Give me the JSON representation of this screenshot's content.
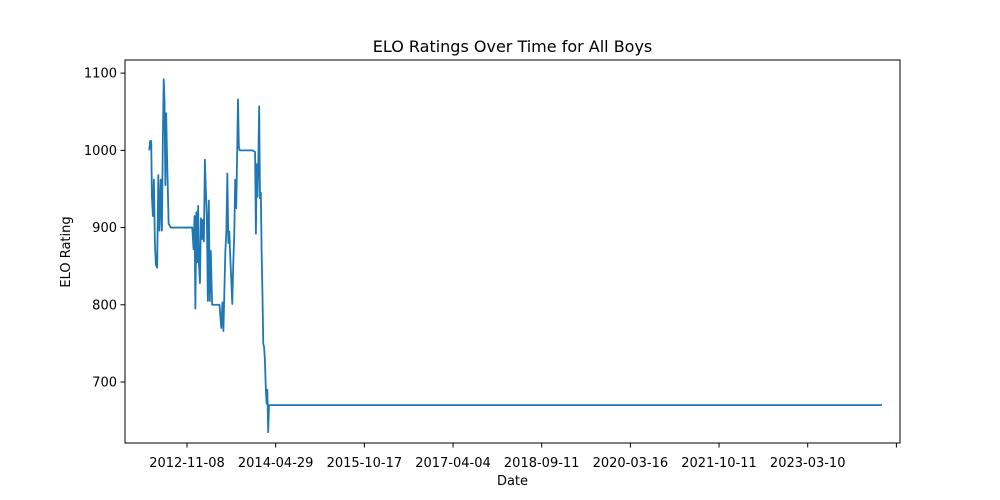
{
  "chart_data": {
    "type": "line",
    "title": "ELO Ratings Over Time for All Boys",
    "xlabel": "Date",
    "ylabel": "ELO Rating",
    "x_tick_labels": [
      "2012-11-08",
      "2014-04-29",
      "2015-10-17",
      "2017-04-04",
      "2018-09-11",
      "2020-03-16",
      "2021-10-11",
      "2023-03-10",
      ""
    ],
    "y_ticks": [
      700,
      800,
      900,
      1000,
      1100
    ],
    "ylim": [
      621,
      1117
    ],
    "xlim": [
      "2011-10-27",
      "2024-10-03"
    ],
    "grid": false,
    "color": "#1f77b4",
    "series": [
      {
        "name": "",
        "points": [
          [
            "2012-03-23",
            1000
          ],
          [
            "2012-03-28",
            1012
          ],
          [
            "2012-04-04",
            1012
          ],
          [
            "2012-04-08",
            940
          ],
          [
            "2012-04-14",
            915
          ],
          [
            "2012-04-20",
            962
          ],
          [
            "2012-04-26",
            882
          ],
          [
            "2012-05-02",
            852
          ],
          [
            "2012-05-10",
            848
          ],
          [
            "2012-05-17",
            968
          ],
          [
            "2012-05-24",
            896
          ],
          [
            "2012-06-01",
            962
          ],
          [
            "2012-06-08",
            896
          ],
          [
            "2012-06-14",
            1018
          ],
          [
            "2012-06-19",
            1092
          ],
          [
            "2012-06-24",
            1065
          ],
          [
            "2012-06-29",
            955
          ],
          [
            "2012-07-04",
            1048
          ],
          [
            "2012-07-09",
            995
          ],
          [
            "2012-07-14",
            950
          ],
          [
            "2012-07-19",
            905
          ],
          [
            "2012-08-01",
            900
          ],
          [
            "2012-09-15",
            900
          ],
          [
            "2012-10-25",
            900
          ],
          [
            "2012-11-05",
            900
          ],
          [
            "2012-11-20",
            900
          ],
          [
            "2012-12-10",
            900
          ],
          [
            "2012-12-18",
            872
          ],
          [
            "2012-12-24",
            915
          ],
          [
            "2012-12-29",
            795
          ],
          [
            "2013-01-04",
            920
          ],
          [
            "2013-01-09",
            855
          ],
          [
            "2013-01-15",
            928
          ],
          [
            "2013-01-20",
            852
          ],
          [
            "2013-01-26",
            828
          ],
          [
            "2013-02-01",
            912
          ],
          [
            "2013-02-07",
            885
          ],
          [
            "2013-02-13",
            910
          ],
          [
            "2013-02-19",
            882
          ],
          [
            "2013-02-25",
            988
          ],
          [
            "2013-03-03",
            948
          ],
          [
            "2013-03-09",
            915
          ],
          [
            "2013-03-15",
            805
          ],
          [
            "2013-03-21",
            935
          ],
          [
            "2013-03-27",
            805
          ],
          [
            "2013-04-02",
            870
          ],
          [
            "2013-04-10",
            800
          ],
          [
            "2013-05-01",
            800
          ],
          [
            "2013-05-25",
            800
          ],
          [
            "2013-06-05",
            770
          ],
          [
            "2013-06-12",
            803
          ],
          [
            "2013-06-18",
            766
          ],
          [
            "2013-06-24",
            820
          ],
          [
            "2013-06-30",
            870
          ],
          [
            "2013-07-06",
            895
          ],
          [
            "2013-07-12",
            970
          ],
          [
            "2013-07-18",
            880
          ],
          [
            "2013-07-24",
            895
          ],
          [
            "2013-07-30",
            860
          ],
          [
            "2013-08-05",
            832
          ],
          [
            "2013-08-11",
            801
          ],
          [
            "2013-08-17",
            852
          ],
          [
            "2013-08-23",
            890
          ],
          [
            "2013-08-29",
            962
          ],
          [
            "2013-09-04",
            925
          ],
          [
            "2013-09-10",
            1000
          ],
          [
            "2013-09-15",
            1066
          ],
          [
            "2013-09-20",
            1005
          ],
          [
            "2013-09-25",
            1000
          ],
          [
            "2013-10-20",
            1000
          ],
          [
            "2013-11-15",
            1000
          ],
          [
            "2013-12-10",
            1000
          ],
          [
            "2013-12-28",
            998
          ],
          [
            "2014-01-02",
            892
          ],
          [
            "2014-01-07",
            982
          ],
          [
            "2014-01-12",
            940
          ],
          [
            "2014-01-17",
            990
          ],
          [
            "2014-01-22",
            1057
          ],
          [
            "2014-01-27",
            938
          ],
          [
            "2014-02-01",
            945
          ],
          [
            "2014-02-06",
            868
          ],
          [
            "2014-02-11",
            815
          ],
          [
            "2014-02-16",
            750
          ],
          [
            "2014-02-21",
            745
          ],
          [
            "2014-02-26",
            728
          ],
          [
            "2014-03-03",
            695
          ],
          [
            "2014-03-08",
            672
          ],
          [
            "2014-03-13",
            690
          ],
          [
            "2014-03-18",
            635
          ],
          [
            "2014-03-23",
            670
          ],
          [
            "2014-04-10",
            670
          ],
          [
            "2015-06-01",
            670
          ],
          [
            "2017-06-01",
            670
          ],
          [
            "2019-06-01",
            670
          ],
          [
            "2021-06-01",
            670
          ],
          [
            "2023-06-01",
            670
          ],
          [
            "2024-06-15",
            670
          ]
        ]
      }
    ]
  }
}
